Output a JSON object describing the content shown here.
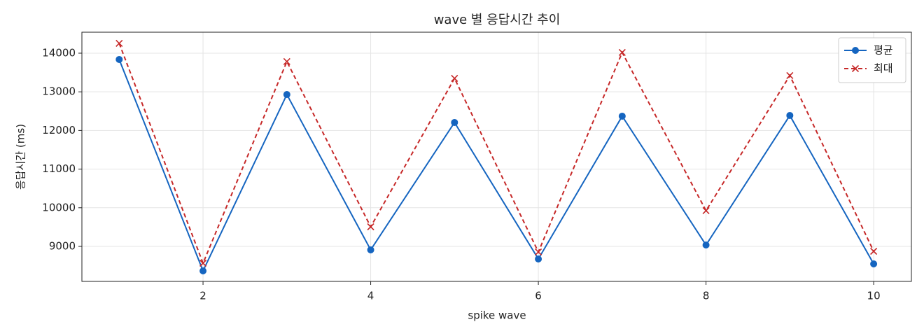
{
  "chart_data": {
    "type": "line",
    "title": "wave 별 응답시간 추이",
    "x_label": "spike wave",
    "y_label": "응답시간 (ms)",
    "x": [
      1,
      2,
      3,
      4,
      5,
      6,
      7,
      8,
      9,
      10
    ],
    "series": [
      {
        "name": "평균",
        "color": "#1565c0",
        "marker": "o",
        "dash": false,
        "values": [
          13837,
          8366,
          12930,
          8910,
          12207,
          8674,
          12370,
          9036,
          12388,
          8547
        ]
      },
      {
        "name": "최대",
        "color": "#c62828",
        "marker": "x",
        "dash": true,
        "values": [
          14254,
          8565,
          13783,
          9507,
          13348,
          8855,
          14018,
          9924,
          13420,
          8873
        ]
      }
    ],
    "xlim": [
      0.555,
      10.45
    ],
    "xticks": [
      2,
      4,
      6,
      8,
      10
    ],
    "ylim": [
      8094,
      14543
    ],
    "yticks": [
      9000,
      10000,
      11000,
      12000,
      13000,
      14000
    ],
    "grid": true,
    "legend": "upper right"
  }
}
